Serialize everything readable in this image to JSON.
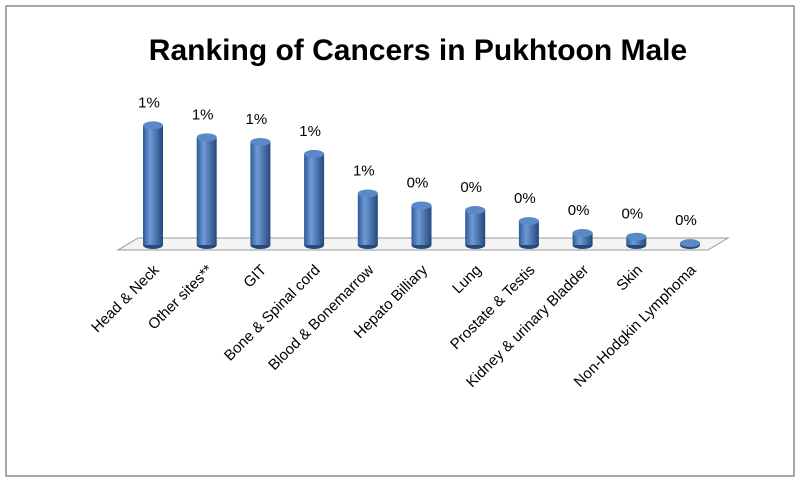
{
  "chart_data": {
    "type": "bar",
    "title": "Ranking of Cancers in Pukhtoon Male",
    "categories": [
      "Head & Neck",
      "Other sites**",
      "GIT",
      "Bone & Spinal cord",
      "Blood & Bonemarrow",
      "Hepato Billiary",
      "Lung",
      "Prostate & Testis",
      "Kidney & urinary Bladder",
      "Skin",
      "Non-Hodgkin Lymphoma"
    ],
    "values": [
      1.3,
      1.17,
      1.12,
      0.99,
      0.56,
      0.43,
      0.38,
      0.26,
      0.13,
      0.09,
      0.02
    ],
    "value_labels": [
      "1%",
      "1%",
      "1%",
      "1%",
      "1%",
      "0%",
      "0%",
      "0%",
      "0%",
      "0%",
      "0%"
    ],
    "color": "#4f81bd"
  }
}
